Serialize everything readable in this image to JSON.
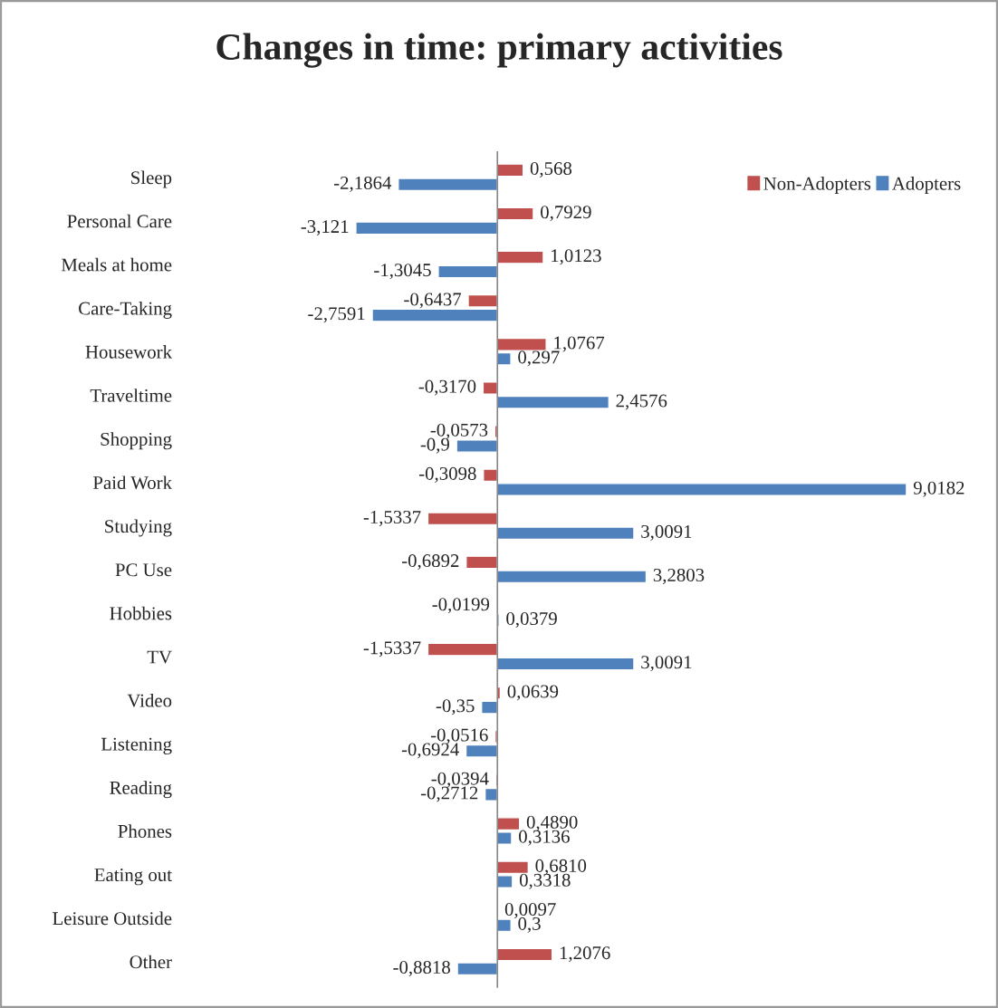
{
  "chart_data": {
    "type": "bar",
    "orientation": "horizontal",
    "title": "Changes in time: primary activities",
    "categories": [
      "Sleep",
      "Personal Care",
      "Meals at home",
      "Care-Taking",
      "Housework",
      "Traveltime",
      "Shopping",
      "Paid Work",
      "Studying",
      "PC Use",
      "Hobbies",
      "TV",
      "Video",
      "Listening",
      "Reading",
      "Phones",
      "Eating out",
      "Leisure Outside",
      "Other"
    ],
    "series": [
      {
        "name": "Non-Adopters",
        "color": "#c0504d",
        "values": [
          0.568,
          0.7929,
          1.0123,
          -0.6437,
          1.0767,
          -0.317,
          -0.0573,
          -0.3098,
          -1.5337,
          -0.6892,
          -0.0199,
          -1.5337,
          0.0639,
          -0.0516,
          -0.0394,
          0.489,
          0.681,
          0.0097,
          1.2076
        ],
        "value_labels": [
          "0,568",
          "0,7929",
          "1,0123",
          "-0,6437",
          "1,0767",
          "-0,3170",
          "-0,0573",
          "-0,3098",
          "-1,5337",
          "-0,6892",
          "-0,0199",
          "-1,5337",
          "0,0639",
          "-0,0516",
          "-0,0394",
          "0,4890",
          "0,6810",
          "0,0097",
          "1,2076"
        ]
      },
      {
        "name": "Adopters",
        "color": "#4f81bd",
        "values": [
          -2.1864,
          -3.121,
          -1.3045,
          -2.7591,
          0.297,
          2.4576,
          -0.9,
          9.0182,
          3.0091,
          3.2803,
          0.0379,
          3.0091,
          -0.35,
          -0.6924,
          -0.2712,
          0.3136,
          0.3318,
          0.3,
          -0.8818
        ],
        "value_labels": [
          "-2,1864",
          "-3,121",
          "-1,3045",
          "-2,7591",
          "0,297",
          "2,4576",
          "-0,9",
          "9,0182",
          "3,0091",
          "3,2803",
          "0,0379",
          "3,0091",
          "-0,35",
          "-0,6924",
          "-0,2712",
          "0,3136",
          "0,3318",
          "0,3",
          "-0,8818"
        ]
      }
    ],
    "legend": "top right",
    "grid": false
  }
}
